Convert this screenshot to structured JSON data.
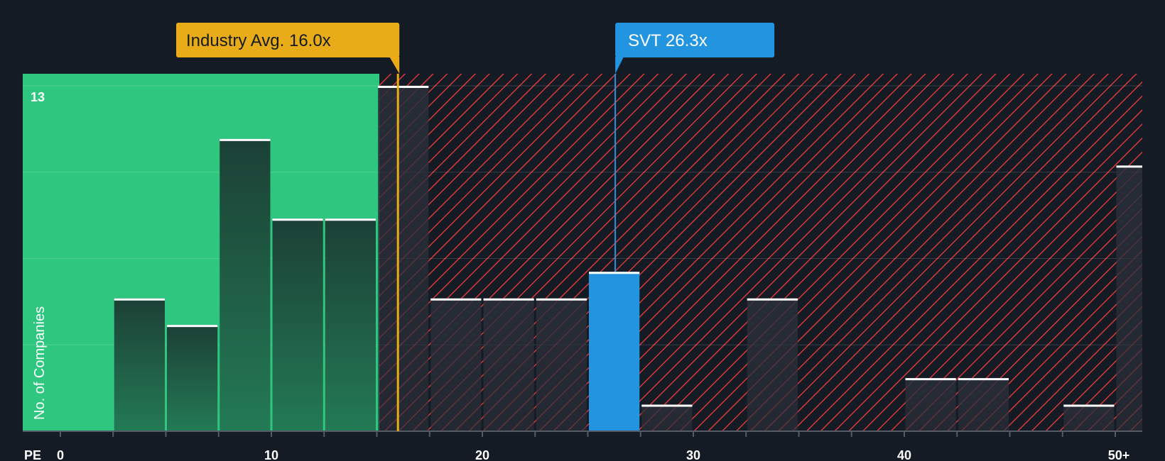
{
  "chart_data": {
    "type": "bar",
    "title": "",
    "xlabel": "PE",
    "ylabel": "No. of Companies",
    "x_ticks": [
      "0",
      "10",
      "20",
      "30",
      "40",
      "50+"
    ],
    "y_max_label": "13",
    "ylim": [
      0,
      13
    ],
    "bin_width": 2.5,
    "bins": [
      {
        "x_start": 2.5,
        "value": 5
      },
      {
        "x_start": 5.0,
        "value": 4
      },
      {
        "x_start": 7.5,
        "value": 11
      },
      {
        "x_start": 10.0,
        "value": 8
      },
      {
        "x_start": 12.5,
        "value": 8
      },
      {
        "x_start": 15.0,
        "value": 13
      },
      {
        "x_start": 17.5,
        "value": 5
      },
      {
        "x_start": 20.0,
        "value": 5
      },
      {
        "x_start": 22.5,
        "value": 5
      },
      {
        "x_start": 25.0,
        "value": 6
      },
      {
        "x_start": 27.5,
        "value": 1
      },
      {
        "x_start": 32.5,
        "value": 5
      },
      {
        "x_start": 40.0,
        "value": 2
      },
      {
        "x_start": 42.5,
        "value": 2
      },
      {
        "x_start": 47.5,
        "value": 1
      },
      {
        "x_start": 50.0,
        "value": 10
      }
    ],
    "industry_avg": {
      "value": 16.0,
      "label": "Industry Avg. 16.0x"
    },
    "company": {
      "value": 26.3,
      "label": "SVT 26.3x",
      "bin_x_start": 25.0
    },
    "colors": {
      "background": "#151b24",
      "undervalued_zone": "#2fc77f",
      "overvalued_hatch": "#d63838",
      "bar_dark": "#1e4a3f",
      "company_bar": "#2394e0",
      "industry_marker": "#e8ac18",
      "bar_top_line": "#ffffff"
    }
  }
}
